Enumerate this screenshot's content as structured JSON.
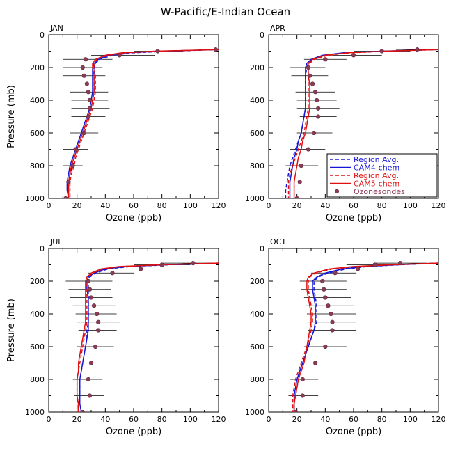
{
  "figure_title": "W-Pacific/E-Indian Ocean",
  "colors": {
    "cam4": "#1515d8",
    "cam5": "#e01010",
    "sonde_fill": "#8e3a55",
    "sonde_edge": "#5a2a40",
    "errorbar": "#000000",
    "axis": "#000000"
  },
  "legend": {
    "entries": [
      {
        "label": "Region Avg.",
        "series": "cam4",
        "style": "dashed"
      },
      {
        "label": "CAM4-chem",
        "series": "cam4",
        "style": "solid"
      },
      {
        "label": "Region Avg.",
        "series": "cam5",
        "style": "dashed"
      },
      {
        "label": "CAM5-chem",
        "series": "cam5",
        "style": "solid"
      },
      {
        "label": "Ozonesondes",
        "series": "sonde",
        "style": "marker"
      }
    ]
  },
  "chart_data": [
    {
      "type": "line",
      "panel": "JAN",
      "xlabel": "Ozone (ppb)",
      "ylabel": "Pressure (mb)",
      "xlim": [
        0,
        120
      ],
      "ylim": [
        1000,
        0
      ],
      "xticks": [
        0,
        20,
        40,
        60,
        80,
        100,
        120
      ],
      "yticks": [
        0,
        200,
        400,
        600,
        800,
        1000
      ],
      "pressure": [
        90,
        100,
        110,
        125,
        150,
        175,
        200,
        250,
        300,
        350,
        400,
        450,
        500,
        550,
        600,
        650,
        700,
        750,
        800,
        850,
        900,
        950,
        1000
      ],
      "series": [
        {
          "name": "Region Avg. (CAM4)",
          "model": "cam4",
          "style": "dashed",
          "values": [
            120,
            85,
            60,
            45,
            36,
            33,
            32,
            32,
            32,
            32,
            31,
            30,
            28,
            26,
            24,
            22,
            20,
            18,
            17,
            15,
            14,
            14,
            14
          ]
        },
        {
          "name": "CAM4-chem",
          "model": "cam4",
          "style": "solid",
          "values": [
            120,
            80,
            55,
            42,
            35,
            32,
            31,
            31,
            31,
            31,
            30,
            29,
            27,
            25,
            23,
            21,
            19,
            17,
            15,
            14,
            13,
            13,
            14
          ]
        },
        {
          "name": "Region Avg. (CAM5)",
          "model": "cam5",
          "style": "dashed",
          "values": [
            120,
            80,
            55,
            42,
            34,
            32,
            32,
            33,
            33,
            33,
            32,
            31,
            29,
            27,
            25,
            23,
            21,
            19,
            18,
            16,
            15,
            15,
            15
          ]
        },
        {
          "name": "CAM5-chem",
          "model": "cam5",
          "style": "solid",
          "values": [
            120,
            75,
            52,
            40,
            33,
            31,
            31,
            32,
            32,
            32,
            31,
            30,
            28,
            26,
            24,
            22,
            20,
            18,
            16,
            15,
            14,
            14,
            14
          ]
        }
      ],
      "sondes": [
        {
          "p": 90,
          "o3": 118,
          "lo": 110,
          "hi": 120
        },
        {
          "p": 100,
          "o3": 77,
          "lo": 60,
          "hi": 95
        },
        {
          "p": 125,
          "o3": 50,
          "lo": 30,
          "hi": 75
        },
        {
          "p": 150,
          "o3": 26,
          "lo": 10,
          "hi": 45
        },
        {
          "p": 200,
          "o3": 24,
          "lo": 10,
          "hi": 38
        },
        {
          "p": 250,
          "o3": 25,
          "lo": 10,
          "hi": 40
        },
        {
          "p": 300,
          "o3": 27,
          "lo": 14,
          "hi": 42
        },
        {
          "p": 350,
          "o3": 28,
          "lo": 15,
          "hi": 42
        },
        {
          "p": 400,
          "o3": 29,
          "lo": 16,
          "hi": 42
        },
        {
          "p": 450,
          "o3": 29,
          "lo": 16,
          "hi": 43
        },
        {
          "p": 500,
          "o3": 28,
          "lo": 16,
          "hi": 40
        },
        {
          "p": 600,
          "o3": 25,
          "lo": 15,
          "hi": 35
        },
        {
          "p": 700,
          "o3": 19,
          "lo": 10,
          "hi": 28
        },
        {
          "p": 800,
          "o3": 17,
          "lo": 10,
          "hi": 24
        },
        {
          "p": 900,
          "o3": 14,
          "lo": 8,
          "hi": 20
        },
        {
          "p": 1000,
          "o3": 12,
          "lo": 6,
          "hi": 18
        }
      ]
    },
    {
      "type": "line",
      "panel": "APR",
      "xlabel": "Ozone (ppb)",
      "ylabel": "",
      "xlim": [
        0,
        120
      ],
      "ylim": [
        1000,
        0
      ],
      "xticks": [
        0,
        20,
        40,
        60,
        80,
        100,
        120
      ],
      "yticks": [
        0,
        200,
        400,
        600,
        800,
        1000
      ],
      "pressure": [
        90,
        100,
        110,
        125,
        150,
        175,
        200,
        250,
        300,
        350,
        400,
        450,
        500,
        550,
        600,
        650,
        700,
        750,
        800,
        850,
        900,
        950,
        1000
      ],
      "series": [
        {
          "name": "Region Avg. (CAM4)",
          "model": "cam4",
          "style": "dashed",
          "values": [
            120,
            82,
            55,
            40,
            31,
            28,
            27,
            26,
            26,
            26,
            26,
            26,
            25,
            24,
            23,
            21,
            19,
            17,
            15,
            14,
            13,
            12,
            12
          ]
        },
        {
          "name": "CAM4-chem",
          "model": "cam4",
          "style": "solid",
          "values": [
            120,
            80,
            53,
            38,
            30,
            27,
            26,
            26,
            26,
            26,
            26,
            26,
            25,
            24,
            23,
            21,
            20,
            18,
            17,
            16,
            15,
            15,
            15
          ]
        },
        {
          "name": "Region Avg. (CAM5)",
          "model": "cam5",
          "style": "dashed",
          "values": [
            120,
            85,
            58,
            42,
            32,
            29,
            28,
            28,
            28,
            28,
            28,
            28,
            27,
            26,
            25,
            23,
            21,
            19,
            17,
            15,
            14,
            14,
            14
          ]
        },
        {
          "name": "CAM5-chem",
          "model": "cam5",
          "style": "solid",
          "values": [
            120,
            82,
            56,
            40,
            31,
            28,
            28,
            28,
            29,
            29,
            29,
            29,
            28,
            27,
            26,
            24,
            23,
            21,
            20,
            19,
            18,
            18,
            18
          ]
        }
      ],
      "sondes": [
        {
          "p": 90,
          "o3": 105,
          "lo": 90,
          "hi": 118
        },
        {
          "p": 100,
          "o3": 80,
          "lo": 60,
          "hi": 100
        },
        {
          "p": 125,
          "o3": 60,
          "lo": 40,
          "hi": 80
        },
        {
          "p": 150,
          "o3": 40,
          "lo": 25,
          "hi": 55
        },
        {
          "p": 200,
          "o3": 28,
          "lo": 15,
          "hi": 40
        },
        {
          "p": 250,
          "o3": 29,
          "lo": 16,
          "hi": 42
        },
        {
          "p": 300,
          "o3": 31,
          "lo": 18,
          "hi": 45
        },
        {
          "p": 350,
          "o3": 33,
          "lo": 19,
          "hi": 47
        },
        {
          "p": 400,
          "o3": 34,
          "lo": 20,
          "hi": 48
        },
        {
          "p": 450,
          "o3": 35,
          "lo": 20,
          "hi": 50
        },
        {
          "p": 500,
          "o3": 35,
          "lo": 22,
          "hi": 48
        },
        {
          "p": 600,
          "o3": 32,
          "lo": 20,
          "hi": 45
        },
        {
          "p": 700,
          "o3": 28,
          "lo": 15,
          "hi": 40
        },
        {
          "p": 800,
          "o3": 23,
          "lo": 12,
          "hi": 35
        },
        {
          "p": 900,
          "o3": 22,
          "lo": 12,
          "hi": 32
        },
        {
          "p": 1000,
          "o3": 20,
          "lo": 10,
          "hi": 30
        }
      ]
    },
    {
      "type": "line",
      "panel": "JUL",
      "xlabel": "Ozone (ppb)",
      "ylabel": "Pressure (mb)",
      "xlim": [
        0,
        120
      ],
      "ylim": [
        1000,
        0
      ],
      "xticks": [
        0,
        20,
        40,
        60,
        80,
        100,
        120
      ],
      "yticks": [
        0,
        200,
        400,
        600,
        800,
        1000
      ],
      "pressure": [
        90,
        100,
        110,
        125,
        150,
        175,
        200,
        250,
        300,
        350,
        400,
        450,
        500,
        550,
        600,
        650,
        700,
        750,
        800,
        850,
        900,
        950,
        1000
      ],
      "series": [
        {
          "name": "Region Avg. (CAM4)",
          "model": "cam4",
          "style": "dashed",
          "values": [
            120,
            85,
            58,
            42,
            33,
            29,
            28,
            28,
            28,
            28,
            28,
            28,
            27,
            27,
            26,
            25,
            24,
            23,
            22,
            22,
            22,
            21,
            21
          ]
        },
        {
          "name": "CAM4-chem",
          "model": "cam4",
          "style": "solid",
          "values": [
            120,
            82,
            55,
            40,
            32,
            28,
            27,
            27,
            28,
            28,
            28,
            28,
            28,
            27,
            26,
            25,
            24,
            23,
            22,
            22,
            22,
            22,
            23
          ]
        },
        {
          "name": "Region Avg. (CAM5)",
          "model": "cam5",
          "style": "dashed",
          "values": [
            120,
            80,
            52,
            38,
            31,
            28,
            27,
            27,
            27,
            27,
            27,
            27,
            26,
            25,
            24,
            23,
            22,
            21,
            20,
            20,
            20,
            20,
            20
          ]
        },
        {
          "name": "CAM5-chem",
          "model": "cam5",
          "style": "solid",
          "values": [
            120,
            78,
            50,
            37,
            30,
            27,
            26,
            26,
            26,
            26,
            26,
            26,
            25,
            24,
            23,
            22,
            21,
            21,
            20,
            20,
            20,
            21,
            21
          ]
        }
      ],
      "sondes": [
        {
          "p": 90,
          "o3": 102,
          "lo": 80,
          "hi": 120
        },
        {
          "p": 100,
          "o3": 80,
          "lo": 60,
          "hi": 100
        },
        {
          "p": 125,
          "o3": 65,
          "lo": 45,
          "hi": 85
        },
        {
          "p": 150,
          "o3": 45,
          "lo": 28,
          "hi": 60
        },
        {
          "p": 200,
          "o3": 28,
          "lo": 12,
          "hi": 45
        },
        {
          "p": 250,
          "o3": 29,
          "lo": 14,
          "hi": 44
        },
        {
          "p": 300,
          "o3": 30,
          "lo": 15,
          "hi": 45
        },
        {
          "p": 350,
          "o3": 32,
          "lo": 17,
          "hi": 47
        },
        {
          "p": 400,
          "o3": 34,
          "lo": 19,
          "hi": 48
        },
        {
          "p": 450,
          "o3": 35,
          "lo": 20,
          "hi": 50
        },
        {
          "p": 500,
          "o3": 35,
          "lo": 21,
          "hi": 48
        },
        {
          "p": 600,
          "o3": 33,
          "lo": 20,
          "hi": 46
        },
        {
          "p": 700,
          "o3": 30,
          "lo": 18,
          "hi": 42
        },
        {
          "p": 800,
          "o3": 28,
          "lo": 17,
          "hi": 38
        },
        {
          "p": 900,
          "o3": 29,
          "lo": 18,
          "hi": 39
        },
        {
          "p": 1000,
          "o3": 24,
          "lo": 12,
          "hi": 36
        }
      ]
    },
    {
      "type": "line",
      "panel": "OCT",
      "xlabel": "Ozone (ppb)",
      "ylabel": "",
      "xlim": [
        0,
        120
      ],
      "ylim": [
        1000,
        0
      ],
      "xticks": [
        0,
        20,
        40,
        60,
        80,
        100,
        120
      ],
      "yticks": [
        0,
        200,
        400,
        600,
        800,
        1000
      ],
      "pressure": [
        90,
        100,
        110,
        125,
        150,
        175,
        200,
        250,
        300,
        350,
        400,
        450,
        500,
        550,
        600,
        650,
        700,
        750,
        800,
        850,
        900,
        950,
        1000
      ],
      "series": [
        {
          "name": "Region Avg. (CAM4)",
          "model": "cam4",
          "style": "dashed",
          "values": [
            120,
            92,
            70,
            55,
            42,
            35,
            32,
            32,
            33,
            34,
            34,
            34,
            32,
            30,
            28,
            26,
            24,
            22,
            21,
            20,
            19,
            18,
            18
          ]
        },
        {
          "name": "CAM4-chem",
          "model": "cam4",
          "style": "solid",
          "values": [
            120,
            90,
            68,
            52,
            40,
            34,
            31,
            31,
            32,
            33,
            33,
            33,
            32,
            30,
            28,
            26,
            24,
            22,
            20,
            19,
            18,
            18,
            18
          ]
        },
        {
          "name": "Region Avg. (CAM5)",
          "model": "cam5",
          "style": "dashed",
          "values": [
            120,
            88,
            62,
            45,
            33,
            29,
            28,
            28,
            29,
            30,
            31,
            31,
            30,
            29,
            27,
            25,
            23,
            21,
            19,
            18,
            17,
            17,
            17
          ]
        },
        {
          "name": "CAM5-chem",
          "model": "cam5",
          "style": "solid",
          "values": [
            120,
            85,
            60,
            43,
            32,
            28,
            27,
            27,
            28,
            29,
            30,
            30,
            29,
            28,
            27,
            26,
            25,
            23,
            21,
            20,
            19,
            18,
            18
          ]
        }
      ],
      "sondes": [
        {
          "p": 90,
          "o3": 93,
          "lo": 75,
          "hi": 112
        },
        {
          "p": 100,
          "o3": 75,
          "lo": 55,
          "hi": 95
        },
        {
          "p": 125,
          "o3": 63,
          "lo": 45,
          "hi": 80
        },
        {
          "p": 150,
          "o3": 47,
          "lo": 30,
          "hi": 62
        },
        {
          "p": 200,
          "o3": 38,
          "lo": 22,
          "hi": 55
        },
        {
          "p": 250,
          "o3": 39,
          "lo": 23,
          "hi": 55
        },
        {
          "p": 300,
          "o3": 40,
          "lo": 25,
          "hi": 58
        },
        {
          "p": 350,
          "o3": 42,
          "lo": 26,
          "hi": 60
        },
        {
          "p": 400,
          "o3": 44,
          "lo": 27,
          "hi": 62
        },
        {
          "p": 450,
          "o3": 45,
          "lo": 28,
          "hi": 62
        },
        {
          "p": 500,
          "o3": 45,
          "lo": 28,
          "hi": 62
        },
        {
          "p": 600,
          "o3": 40,
          "lo": 25,
          "hi": 55
        },
        {
          "p": 700,
          "o3": 33,
          "lo": 20,
          "hi": 48
        },
        {
          "p": 800,
          "o3": 24,
          "lo": 15,
          "hi": 35
        },
        {
          "p": 900,
          "o3": 24,
          "lo": 14,
          "hi": 35
        },
        {
          "p": 1000,
          "o3": 19,
          "lo": 8,
          "hi": 35
        }
      ]
    }
  ]
}
